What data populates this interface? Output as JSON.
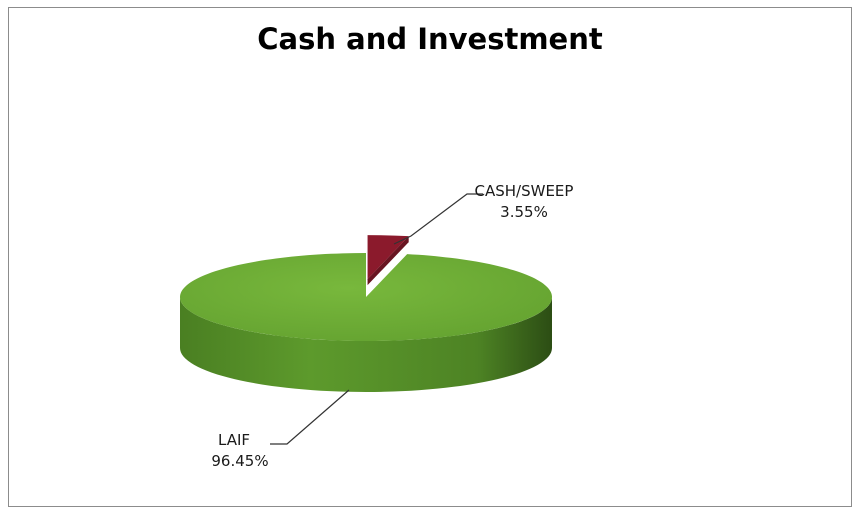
{
  "chart_data": {
    "type": "pie",
    "title": "Cash and Investment",
    "slices": [
      {
        "label": "CASH/SWEEP",
        "value": 3.55,
        "value_label": "3.55%",
        "color": "#8b1a2c"
      },
      {
        "label": "LAIF",
        "value": 96.45,
        "value_label": "96.45%",
        "color": "#6aa533"
      }
    ],
    "three_d": true,
    "exploded": "CASH/SWEEP",
    "legend": "none"
  }
}
